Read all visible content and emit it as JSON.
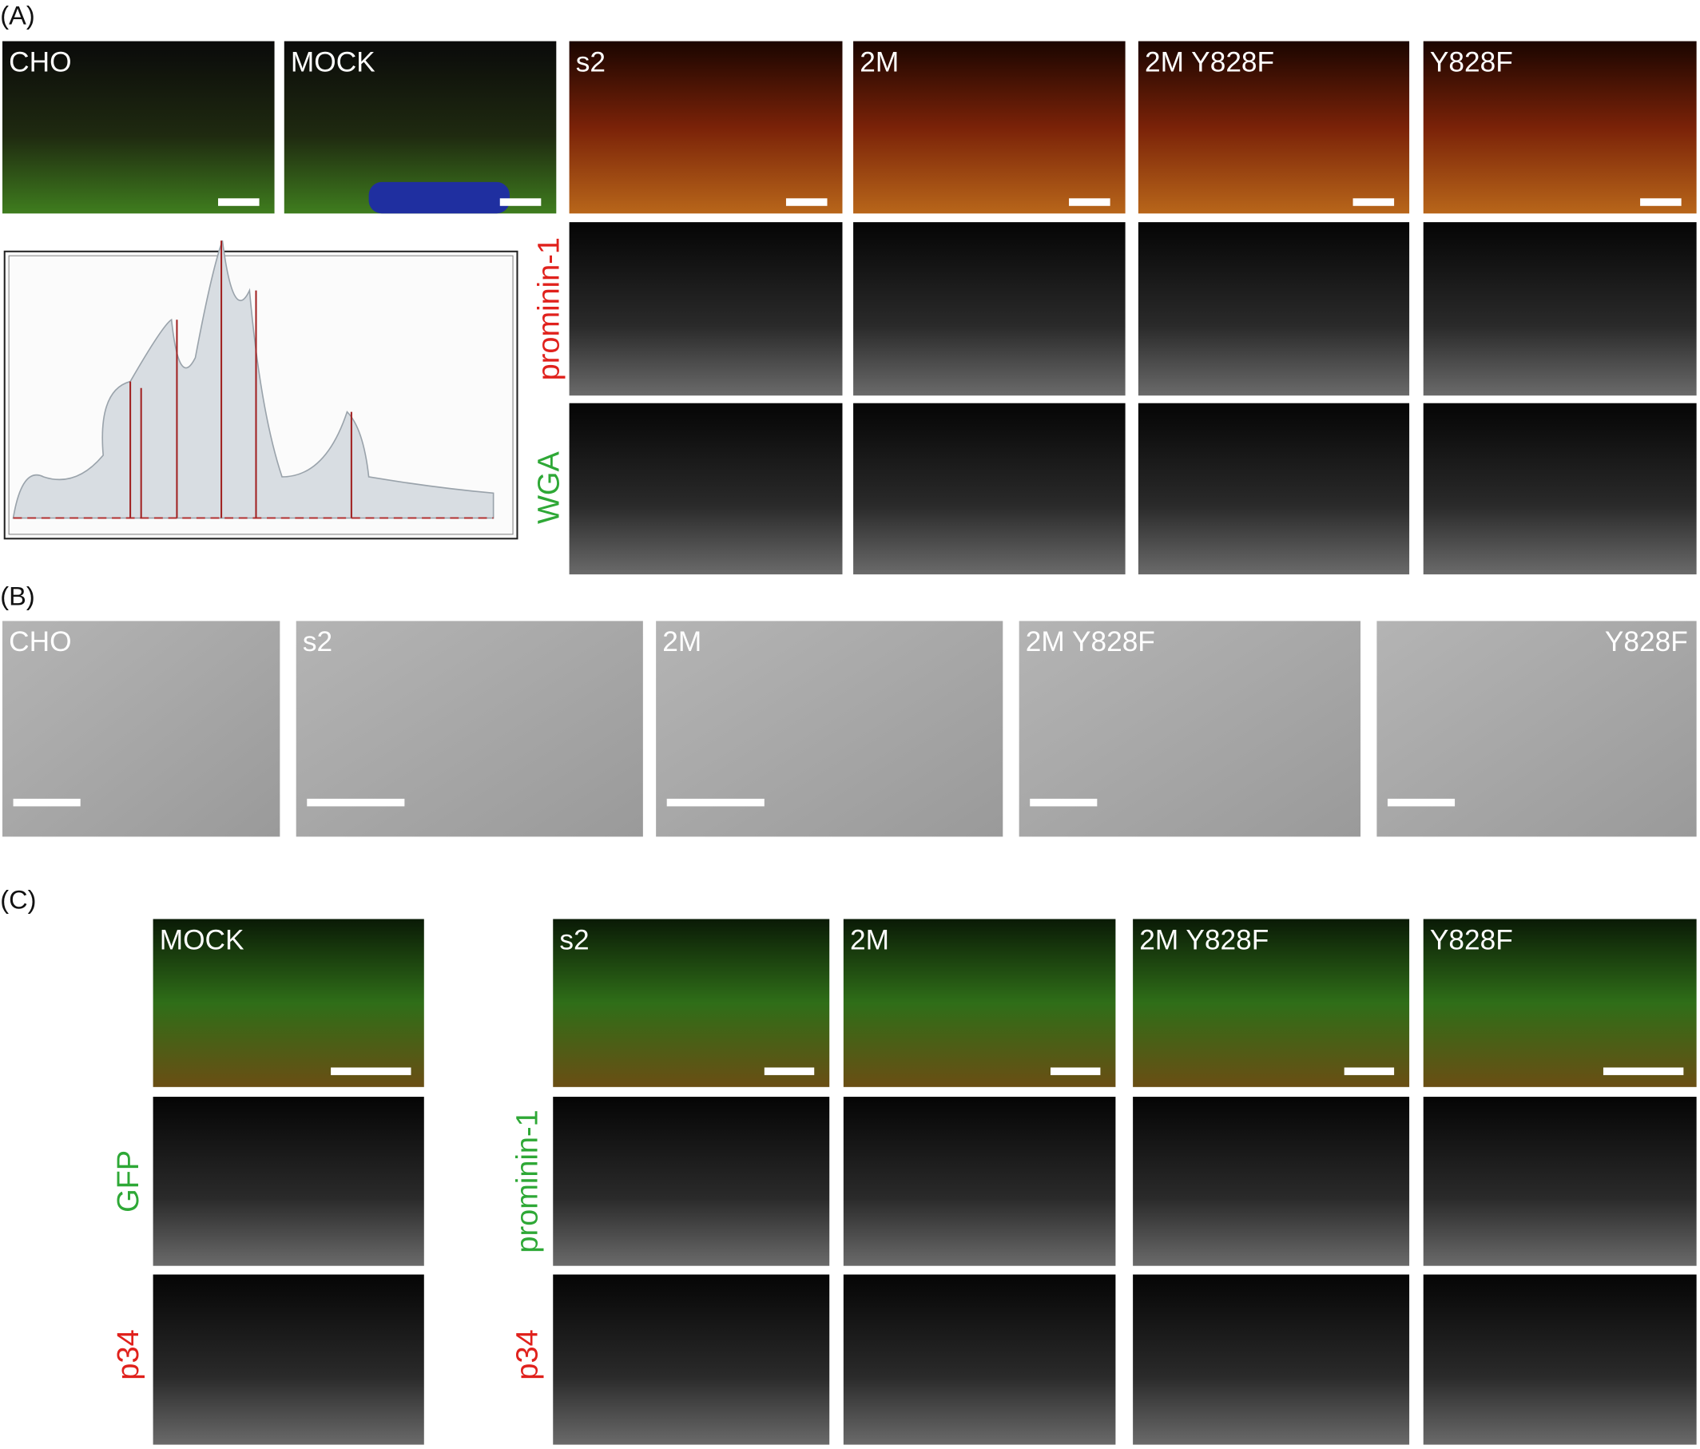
{
  "panels": {
    "A": {
      "label": "(A)",
      "images": [
        "CHO",
        "MOCK",
        "s2",
        "2M",
        "2M Y828F",
        "Y828F"
      ],
      "channel_labels": [
        "prominin-1",
        "WGA"
      ]
    },
    "B": {
      "label": "(B)",
      "images": [
        "CHO",
        "s2",
        "2M",
        "2M Y828F",
        "Y828F"
      ]
    },
    "C": {
      "label": "(C)",
      "images": [
        "MOCK",
        "s2",
        "2M",
        "2M Y828F",
        "Y828F"
      ],
      "mock_channels": [
        "GFP",
        "p34"
      ],
      "channels": [
        "prominin-1",
        "p34"
      ]
    }
  }
}
